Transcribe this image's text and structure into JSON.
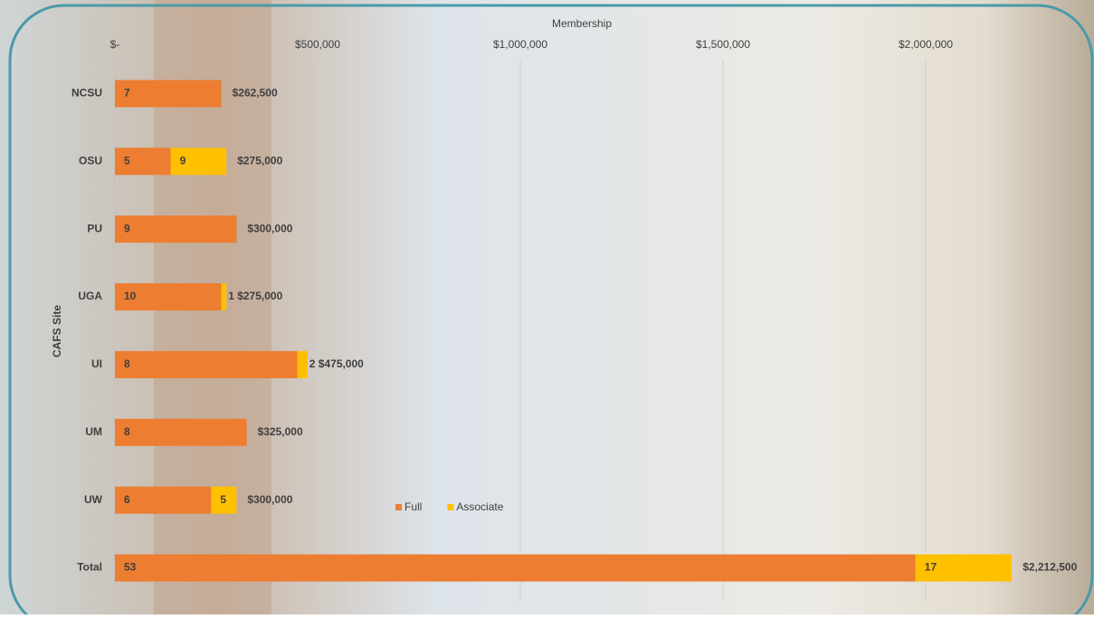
{
  "chart_data": {
    "type": "stacked-bar-horizontal",
    "x_label": "Membership",
    "y_label": "CAFS Site",
    "categories": [
      "NCSU",
      "OSU",
      "PU",
      "UGA",
      "UI",
      "UM",
      "UW",
      "Total"
    ],
    "series": [
      {
        "name": "Full",
        "color": "#ed7d31",
        "values": [
          262500,
          137500,
          300000,
          262500,
          450000,
          325000,
          237500,
          1975000
        ],
        "counts": [
          7,
          5,
          9,
          10,
          8,
          8,
          6,
          53
        ]
      },
      {
        "name": "Associate",
        "color": "#ffc000",
        "values": [
          null,
          137500,
          null,
          12500,
          25000,
          null,
          62500,
          237500
        ],
        "counts": [
          null,
          9,
          null,
          1,
          2,
          null,
          5,
          17
        ]
      }
    ],
    "totals": [
      262500,
      275000,
      300000,
      275000,
      475000,
      325000,
      300000,
      2212500
    ],
    "total_labels": [
      "$262,500",
      "$275,000",
      "$300,000",
      "$275,000",
      "$475,000",
      "$325,000",
      "$300,000",
      "$2,212,500"
    ],
    "xlim": [
      0,
      2400000
    ],
    "xticks": [
      {
        "value": 0,
        "label": "$-"
      },
      {
        "value": 500000,
        "label": "$500,000"
      },
      {
        "value": 1000000,
        "label": "$1,000,000"
      },
      {
        "value": 1500000,
        "label": "$1,500,000"
      },
      {
        "value": 2000000,
        "label": "$2,000,000"
      }
    ],
    "grid": true
  }
}
